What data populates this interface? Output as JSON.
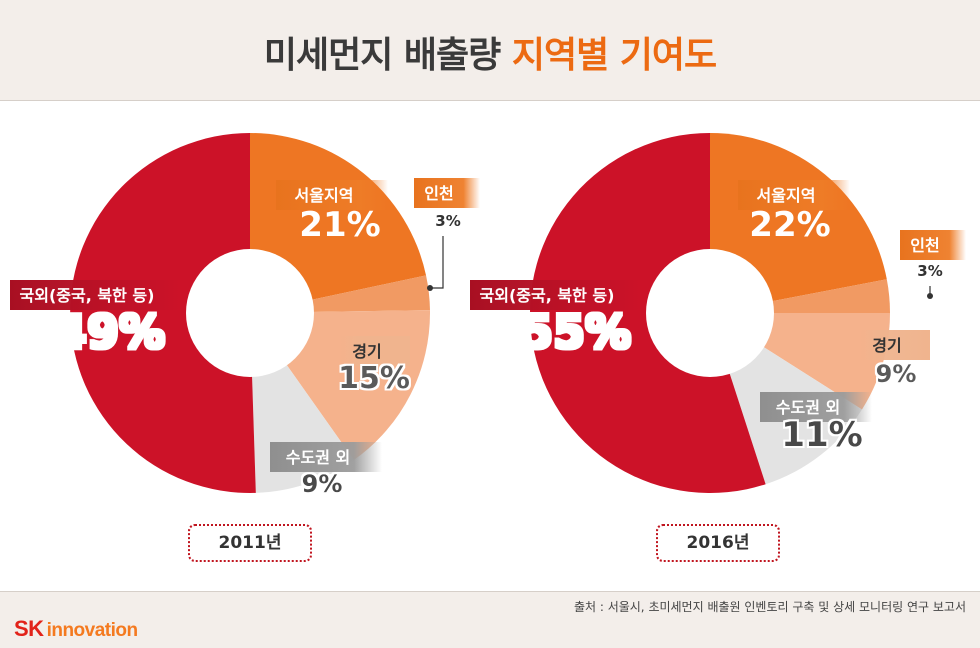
{
  "title": {
    "main": "미세먼지 배출량",
    "accent": "지역별 기여도"
  },
  "chart_data": [
    {
      "type": "pie",
      "year_label": "2011년",
      "slices": [
        {
          "label": "서울지역",
          "value": 21,
          "display": "21%",
          "color": "#ee7623"
        },
        {
          "label": "인천",
          "value": 3,
          "display": "3%",
          "color": "#f19a63"
        },
        {
          "label": "경기",
          "value": 15,
          "display": "15%",
          "color": "#f5b28c"
        },
        {
          "label": "수도권 외",
          "value": 9,
          "display": "9%",
          "color": "#e3e3e3"
        },
        {
          "label": "국외(중국, 북한 등)",
          "value": 49,
          "display": "49%",
          "color": "#cc1228"
        }
      ]
    },
    {
      "type": "pie",
      "year_label": "2016년",
      "slices": [
        {
          "label": "서울지역",
          "value": 22,
          "display": "22%",
          "color": "#ee7623"
        },
        {
          "label": "인천",
          "value": 3,
          "display": "3%",
          "color": "#f19a63"
        },
        {
          "label": "경기",
          "value": 9,
          "display": "9%",
          "color": "#f5b28c"
        },
        {
          "label": "수도권 외",
          "value": 11,
          "display": "11%",
          "color": "#e3e3e3"
        },
        {
          "label": "국외(중국, 북한 등)",
          "value": 55,
          "display": "55%",
          "color": "#cc1228"
        }
      ]
    }
  ],
  "source": "출처 : 서울시, 초미세먼지 배출원 인벤토리 구축 및 상세 모니터링 연구 보고서",
  "logo": {
    "sk": "SK",
    "innovation": "innovation"
  }
}
